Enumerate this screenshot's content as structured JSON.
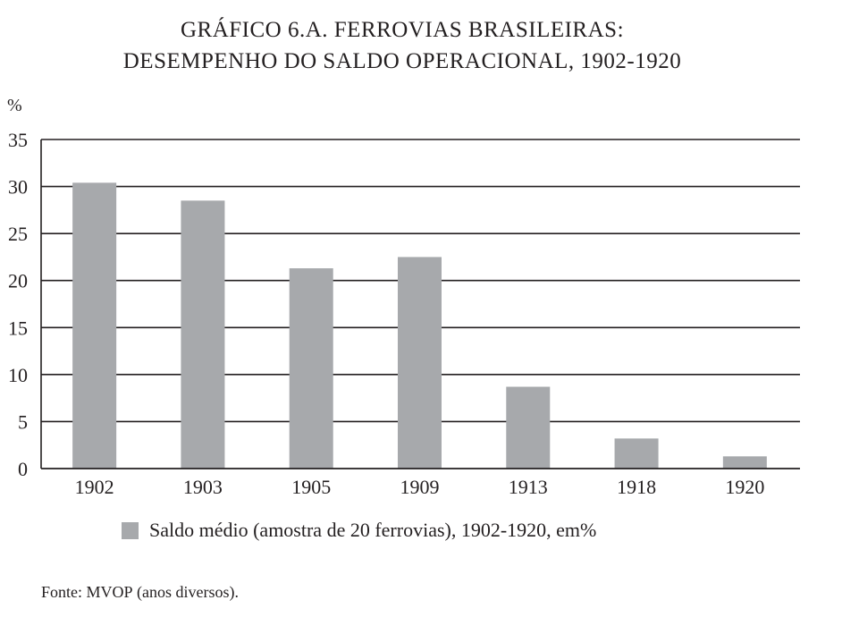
{
  "chart_data": {
    "type": "bar",
    "title_line1": "GRÁFICO 6.A. FERROVIAS BRASILEIRAS:",
    "title_line2": "DESEMPENHO DO SALDO OPERACIONAL, 1902-1920",
    "ylabel": "%",
    "xlabel": "",
    "categories": [
      "1902",
      "1903",
      "1905",
      "1909",
      "1913",
      "1918",
      "1920"
    ],
    "series": [
      {
        "name": "Saldo médio (amostra de 20 ferrovias), 1902-1920, em%",
        "values": [
          30.4,
          28.5,
          21.3,
          22.5,
          8.7,
          3.2,
          1.3
        ],
        "color": "#a7a9ac"
      }
    ],
    "ylim": [
      0,
      35
    ],
    "yticks": [
      0,
      5,
      10,
      15,
      20,
      25,
      30,
      35
    ],
    "grid": true,
    "legend_position": "bottom-left"
  },
  "source": {
    "prefix": "Fonte: ",
    "name": "MVOP",
    "suffix": " (anos diversos)."
  }
}
